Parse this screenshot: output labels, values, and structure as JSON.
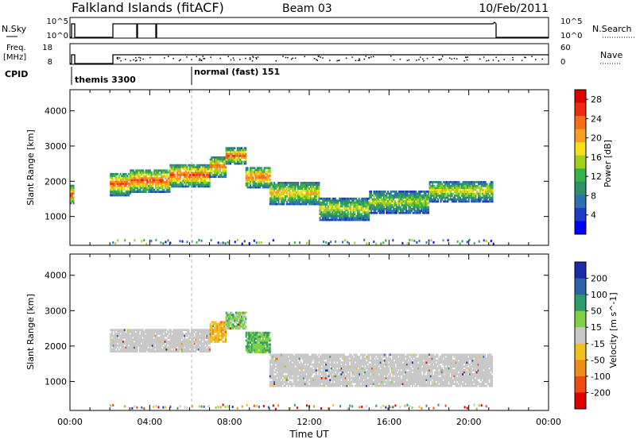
{
  "header": {
    "station": "Falkland Islands (fitACF)",
    "beam": "Beam 03",
    "date": "10/Feb/2011"
  },
  "small_panels": {
    "nsky_label": "N.Sky",
    "nsearch_label": "N.Search",
    "nsky_ticks": [
      "10^5",
      "10^0"
    ],
    "nsearch_ticks": [
      "10^5",
      "10^0"
    ],
    "freq_label_1": "Freq.",
    "freq_label_2": "[MHz]",
    "freq_ticks": [
      "18",
      "8"
    ],
    "nave_label": "Nave",
    "nave_ticks": [
      "60",
      "0"
    ],
    "cpid_label": "CPID",
    "cpid_entries": [
      {
        "label": "themis 3300",
        "start_hour": 0.0
      },
      {
        "label": "normal (fast) 151",
        "start_hour": 6.0
      }
    ]
  },
  "chart_data": [
    {
      "type": "heatmap",
      "title": "",
      "ylabel": "Slant Range [km]",
      "yticks": [
        1000,
        2000,
        3000,
        4000
      ],
      "ylim": [
        180,
        4600
      ],
      "xlim": [
        0,
        24
      ],
      "colorbar": {
        "label": "Power [dB]",
        "ticks": [
          "4",
          "8",
          "12",
          "16",
          "20",
          "24",
          "28"
        ],
        "colors": [
          "#0000ff",
          "#1e3cc8",
          "#2e6fb0",
          "#2f8f6a",
          "#36b24a",
          "#9fd21e",
          "#f5e01a",
          "#f7a020",
          "#f26f1a",
          "#ee2a12",
          "#e00000"
        ]
      },
      "bands": [
        {
          "start": 0.0,
          "end": 0.15,
          "center": 1600,
          "width": 500,
          "level": 27
        },
        {
          "start": 2.0,
          "end": 3.0,
          "center": 1900,
          "width": 650,
          "level": 25
        },
        {
          "start": 3.0,
          "end": 5.0,
          "center": 2000,
          "width": 650,
          "level": 26
        },
        {
          "start": 5.0,
          "end": 7.0,
          "center": 2150,
          "width": 650,
          "level": 26
        },
        {
          "start": 7.0,
          "end": 7.8,
          "center": 2400,
          "width": 600,
          "level": 24
        },
        {
          "start": 7.8,
          "end": 8.8,
          "center": 2700,
          "width": 450,
          "level": 26
        },
        {
          "start": 8.8,
          "end": 10.0,
          "center": 2100,
          "width": 600,
          "level": 24
        },
        {
          "start": 10.0,
          "end": 12.5,
          "center": 1650,
          "width": 650,
          "level": 20
        },
        {
          "start": 12.5,
          "end": 15.0,
          "center": 1200,
          "width": 650,
          "level": 17
        },
        {
          "start": 15.0,
          "end": 18.0,
          "center": 1400,
          "width": 650,
          "level": 16
        },
        {
          "start": 18.0,
          "end": 21.2,
          "center": 1700,
          "width": 600,
          "level": 18
        }
      ]
    },
    {
      "type": "heatmap",
      "title": "",
      "ylabel": "Slant Range [km]",
      "yticks": [
        1000,
        2000,
        3000,
        4000
      ],
      "ylim": [
        180,
        4600
      ],
      "xlim": [
        0,
        24
      ],
      "xticks": [
        "00:00",
        "04:00",
        "08:00",
        "12:00",
        "16:00",
        "20:00",
        "00:00"
      ],
      "xlabel": "Time UT",
      "colorbar": {
        "label": "Velocity [m s^-1]",
        "ticks": [
          "200",
          "100",
          "50",
          "15",
          "-15",
          "-50",
          "-100",
          "-200"
        ],
        "colors": [
          "#1a2aa8",
          "#2c63a8",
          "#2f9a6a",
          "#7fd045",
          "#c8c8c8",
          "#f0c020",
          "#f08a18",
          "#ee4a12",
          "#e00000"
        ]
      },
      "bands": [
        {
          "start": 2.0,
          "end": 7.0,
          "center": 2150,
          "width": 650,
          "level": 0
        },
        {
          "start": 7.0,
          "end": 7.8,
          "center": 2400,
          "width": 600,
          "level": -40
        },
        {
          "start": 7.8,
          "end": 8.8,
          "center": 2700,
          "width": 450,
          "level": 20
        },
        {
          "start": 8.8,
          "end": 10.0,
          "center": 2100,
          "width": 600,
          "level": 30
        },
        {
          "start": 10.0,
          "end": 21.2,
          "center": 1300,
          "width": 900,
          "level": 0
        }
      ]
    }
  ]
}
